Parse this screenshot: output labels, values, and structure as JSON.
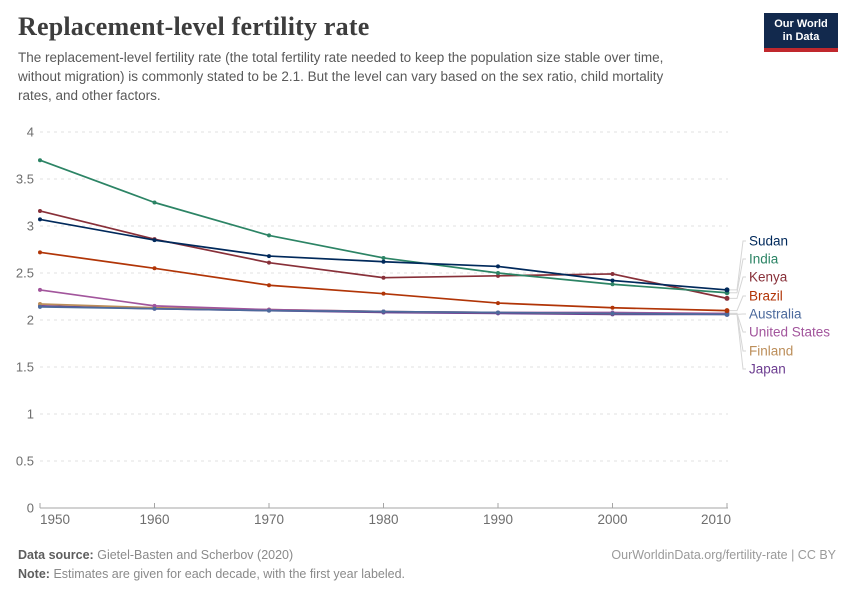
{
  "header": {
    "title": "Replacement-level fertility rate",
    "subtitle_lines": [
      "The replacement-level fertility rate (the total fertility rate needed to keep the population size stable over time,",
      "without migration) is commonly stated to be 2.1. But the level can vary based on the sex ratio, child mortality",
      "rates, and other factors."
    ],
    "logo": {
      "line1": "Our World",
      "line2": "in Data"
    }
  },
  "footer": {
    "data_source_label": "Data source:",
    "data_source_text": "Gietel-Basten and Scherbov (2020)",
    "note_label": "Note:",
    "note_text": "Estimates are given for each decade, with the first year labeled.",
    "link": "OurWorldinData.org/fertility-rate | CC BY"
  },
  "colors": {
    "axis": "#a5a5a5",
    "grid": "#e2e2e2",
    "tick_text": "#6e6e6e",
    "connector": "#d6d6d6",
    "logo_bg": "#12294d",
    "logo_accent": "#c0282d"
  },
  "chart_data": {
    "type": "line",
    "title": "Replacement-level fertility rate",
    "xlabel": "",
    "ylabel": "",
    "x": [
      1950,
      1960,
      1970,
      1980,
      1990,
      2000,
      2010
    ],
    "x_range": [
      1950,
      2010
    ],
    "y_range": [
      0,
      4
    ],
    "y_ticks": [
      0,
      0.5,
      1,
      1.5,
      2,
      2.5,
      3,
      3.5,
      4
    ],
    "grid": true,
    "legend_position": "right",
    "series": [
      {
        "name": "Sudan",
        "color": "#00295B",
        "values": [
          3.07,
          2.85,
          2.68,
          2.62,
          2.57,
          2.42,
          2.32
        ]
      },
      {
        "name": "India",
        "color": "#2C8465",
        "values": [
          3.7,
          3.25,
          2.9,
          2.66,
          2.5,
          2.38,
          2.29
        ]
      },
      {
        "name": "Kenya",
        "color": "#883039",
        "values": [
          3.16,
          2.86,
          2.61,
          2.45,
          2.47,
          2.49,
          2.23
        ]
      },
      {
        "name": "Brazil",
        "color": "#B13507",
        "values": [
          2.72,
          2.55,
          2.37,
          2.28,
          2.18,
          2.13,
          2.1
        ]
      },
      {
        "name": "Australia",
        "color": "#4C6A9C",
        "values": [
          2.14,
          2.12,
          2.1,
          2.09,
          2.08,
          2.07,
          2.06
        ]
      },
      {
        "name": "United States",
        "color": "#A2559C",
        "values": [
          2.32,
          2.15,
          2.11,
          2.09,
          2.08,
          2.08,
          2.07
        ]
      },
      {
        "name": "Finland",
        "color": "#BC8E5A",
        "values": [
          2.17,
          2.13,
          2.11,
          2.09,
          2.08,
          2.07,
          2.07
        ]
      },
      {
        "name": "Japan",
        "color": "#6D3E91",
        "values": [
          2.15,
          2.12,
          2.1,
          2.08,
          2.07,
          2.06,
          2.06
        ]
      }
    ]
  }
}
